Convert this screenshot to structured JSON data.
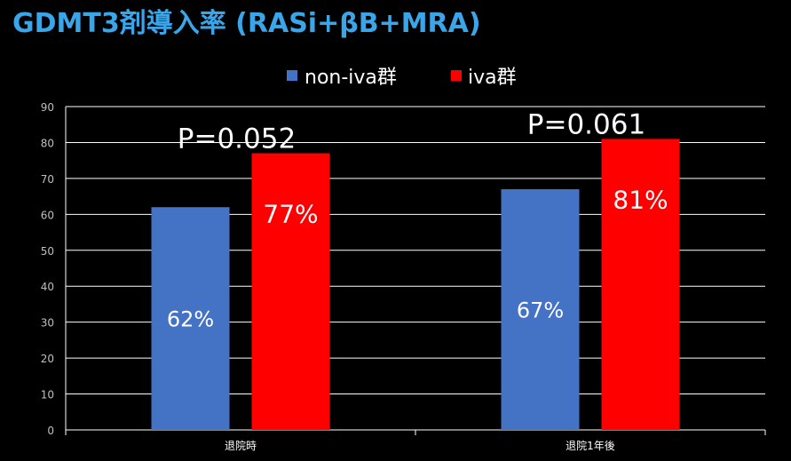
{
  "chart_data": {
    "type": "bar",
    "title": "GDMT3剤導入率 (RASi+βB+MRA)",
    "categories": [
      "退院時",
      "退院1年後"
    ],
    "series": [
      {
        "name": "non-iva群",
        "values": [
          62,
          67
        ],
        "labels": [
          "62%",
          "67%"
        ],
        "color": "#4472c4"
      },
      {
        "name": "iva群",
        "values": [
          77,
          81
        ],
        "labels": [
          "77%",
          "81%"
        ],
        "color": "#ff0000"
      }
    ],
    "annotations": [
      "P=0.052",
      "P=0.061"
    ],
    "ylim": [
      0,
      90
    ],
    "yticks": [
      0,
      10,
      20,
      30,
      40,
      50,
      60,
      70,
      80,
      90
    ],
    "grid": true,
    "legend": "top",
    "xlabel": "",
    "ylabel": ""
  },
  "colors": {
    "background": "#000000",
    "title": "#3aa6ea",
    "text": "#ffffff",
    "gridline": "#ffffff",
    "tick_label": "#bfbfbf"
  }
}
